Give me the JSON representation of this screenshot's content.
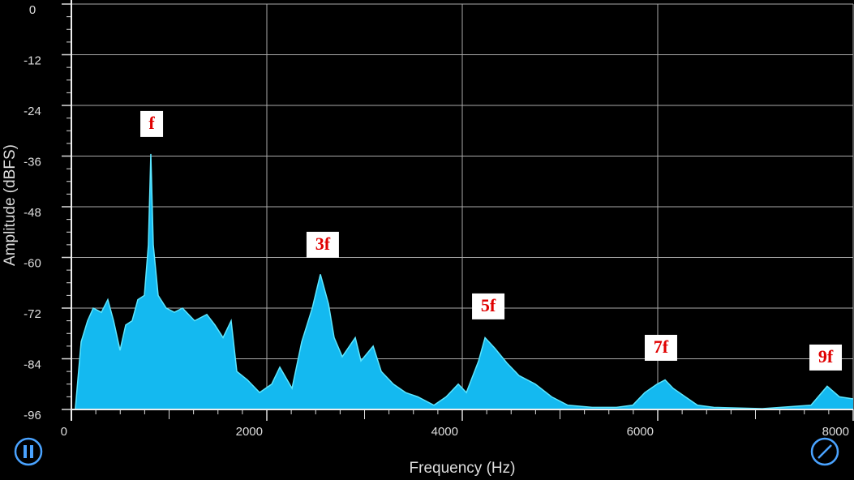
{
  "chart_data": {
    "type": "area",
    "x_label": "Frequency (Hz)",
    "y_label": "Amplitude (dBFS)",
    "xlim": [
      0,
      8000
    ],
    "ylim": [
      -96,
      0
    ],
    "xticks": [
      0,
      2000,
      4000,
      6000,
      8000
    ],
    "yticks": [
      0,
      -12,
      -24,
      -36,
      -48,
      -60,
      -72,
      -84,
      -96
    ],
    "grid": true,
    "color": "#14b9f0",
    "line_color": "#5ce6ff",
    "x": [
      40,
      100,
      166,
      224,
      307,
      373,
      432,
      498,
      556,
      622,
      680,
      747,
      788,
      813,
      838,
      888,
      971,
      1054,
      1137,
      1261,
      1386,
      1469,
      1552,
      1635,
      1693,
      1801,
      1926,
      2050,
      2133,
      2258,
      2357,
      2465,
      2548,
      2631,
      2689,
      2772,
      2905,
      2963,
      3088,
      3171,
      3295,
      3420,
      3544,
      3710,
      3835,
      3959,
      4042,
      4167,
      4233,
      4333,
      4457,
      4582,
      4748,
      4914,
      5080,
      5329,
      5578,
      5744,
      5868,
      5993,
      6075,
      6158,
      6282,
      6407,
      6573,
      7070,
      7568,
      7734,
      7859,
      8000
    ],
    "values": [
      -96,
      -80,
      -75,
      -72,
      -73,
      -70,
      -75,
      -82,
      -76,
      -75,
      -70,
      -69,
      -57,
      -35.5,
      -57,
      -69,
      -72,
      -73,
      -72,
      -75,
      -73.5,
      -76,
      -79,
      -75,
      -87,
      -89,
      -92,
      -90,
      -86,
      -91,
      -80,
      -72,
      -64,
      -71,
      -79,
      -83.5,
      -79,
      -84.5,
      -81,
      -87,
      -90,
      -92,
      -93,
      -95,
      -93,
      -90,
      -92,
      -84.5,
      -79,
      -81.5,
      -85,
      -88,
      -90,
      -93,
      -95,
      -95.5,
      -95.5,
      -95,
      -92,
      -90,
      -89,
      -91,
      -93,
      -95,
      -95.5,
      -95.8,
      -95,
      -90.5,
      -93,
      -93.5
    ],
    "annotations": [
      {
        "text": "f",
        "x": 822,
        "y": -28.4
      },
      {
        "text": "3f",
        "x": 2572,
        "y": -57
      },
      {
        "text": "5f",
        "x": 4266,
        "y": -71.6
      },
      {
        "text": "7f",
        "x": 6033,
        "y": -81.4
      },
      {
        "text": "9f",
        "x": 7718,
        "y": -83.7
      }
    ]
  }
}
